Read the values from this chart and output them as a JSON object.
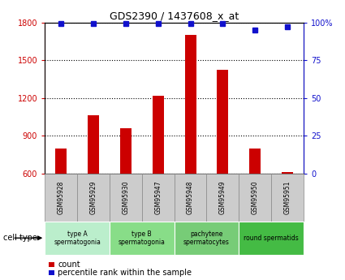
{
  "title": "GDS2390 / 1437608_x_at",
  "samples": [
    "GSM95928",
    "GSM95929",
    "GSM95930",
    "GSM95947",
    "GSM95948",
    "GSM95949",
    "GSM95950",
    "GSM95951"
  ],
  "counts": [
    800,
    1060,
    960,
    1215,
    1700,
    1425,
    800,
    615
  ],
  "percentile_ranks": [
    99,
    99,
    99,
    99,
    99,
    99,
    95,
    97
  ],
  "ylim_left": [
    600,
    1800
  ],
  "yticks_left": [
    600,
    900,
    1200,
    1500,
    1800
  ],
  "ylim_right": [
    0,
    100
  ],
  "yticks_right": [
    0,
    25,
    50,
    75,
    100
  ],
  "bar_color": "#cc0000",
  "dot_color": "#1111cc",
  "cell_types": [
    {
      "label": "type A\nspermatogonia",
      "span": [
        0,
        2
      ],
      "color": "#bbeecc"
    },
    {
      "label": "type B\nspermatogonia",
      "span": [
        2,
        4
      ],
      "color": "#88dd88"
    },
    {
      "label": "pachytene\nspermatocytes",
      "span": [
        4,
        6
      ],
      "color": "#77cc77"
    },
    {
      "label": "round spermatids",
      "span": [
        6,
        8
      ],
      "color": "#44bb44"
    }
  ],
  "cell_type_label": "cell type",
  "legend_count": "count",
  "legend_percentile": "percentile rank within the sample",
  "bar_width": 0.35,
  "grid_color": "#000000",
  "sample_box_color": "#cccccc",
  "sample_box_edge": "#888888"
}
